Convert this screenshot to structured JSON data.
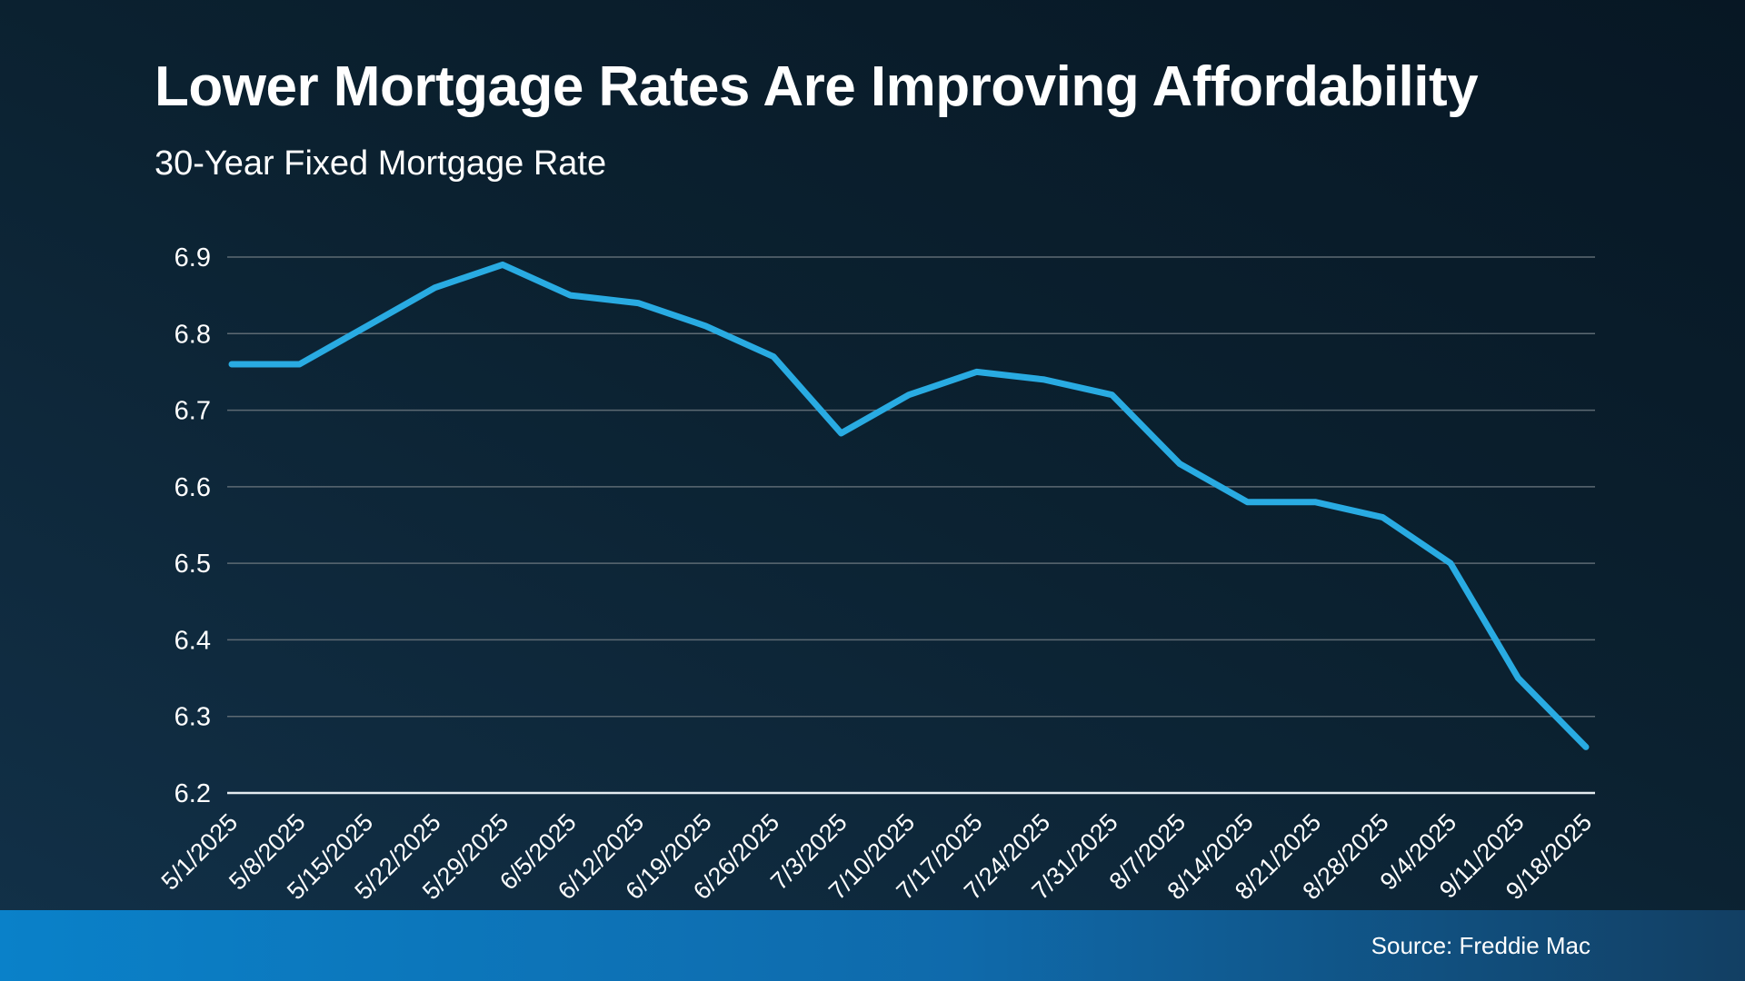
{
  "page": {
    "title": "Lower Mortgage Rates Are Improving Affordability",
    "subtitle": "30-Year Fixed Mortgage Rate",
    "source": "Source: Freddie Mac"
  },
  "colors": {
    "line": "#29ABE2",
    "gridline": "#5d6a73",
    "axis_line": "#e4ebf0",
    "label_text": "#ffffff",
    "footer_bar_left": "#0a81c9",
    "footer_bar_right": "#123f63",
    "background_top_right": "#071724",
    "background_bottom_left": "#123149"
  },
  "chart_data": {
    "type": "line",
    "title": "Lower Mortgage Rates Are Improving Affordability",
    "subtitle": "30-Year Fixed Mortgage Rate",
    "categories": [
      "5/1/2025",
      "5/8/2025",
      "5/15/2025",
      "5/22/2025",
      "5/29/2025",
      "6/5/2025",
      "6/12/2025",
      "6/19/2025",
      "6/26/2025",
      "7/3/2025",
      "7/10/2025",
      "7/17/2025",
      "7/24/2025",
      "7/31/2025",
      "8/7/2025",
      "8/14/2025",
      "8/21/2025",
      "8/28/2025",
      "9/4/2025",
      "9/11/2025",
      "9/18/2025"
    ],
    "series": [
      {
        "name": "30-Year Fixed Mortgage Rate",
        "values": [
          6.76,
          6.76,
          6.81,
          6.86,
          6.89,
          6.85,
          6.84,
          6.81,
          6.77,
          6.67,
          6.72,
          6.75,
          6.74,
          6.72,
          6.63,
          6.58,
          6.58,
          6.56,
          6.5,
          6.35,
          6.26
        ]
      }
    ],
    "xlabel": "",
    "ylabel": "",
    "ylim": [
      6.2,
      6.9
    ],
    "ytick_step": 0.1,
    "ytick_labels": [
      "6.2",
      "6.3",
      "6.4",
      "6.5",
      "6.6",
      "6.7",
      "6.8",
      "6.9"
    ],
    "grid": "horizontal",
    "legend": "none",
    "x_label_rotation_deg": -45,
    "source": "Source: Freddie Mac"
  }
}
